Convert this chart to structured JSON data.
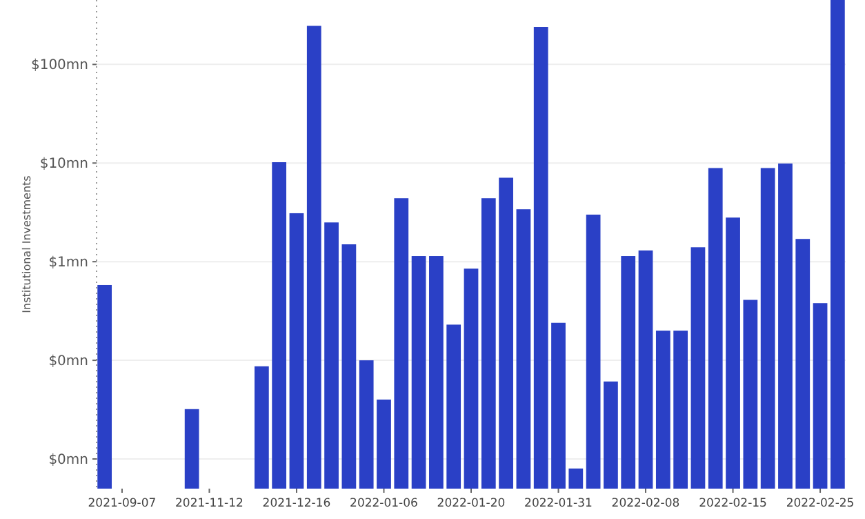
{
  "chart_data": {
    "type": "bar",
    "ylabel": "Institutional Investments",
    "categories": [
      null,
      "2021-09-07",
      null,
      null,
      null,
      null,
      "2021-11-12",
      null,
      null,
      null,
      null,
      "2021-12-16",
      null,
      null,
      null,
      null,
      "2022-01-06",
      null,
      null,
      null,
      null,
      "2022-01-20",
      null,
      null,
      null,
      null,
      "2022-01-31",
      null,
      null,
      null,
      null,
      "2022-02-08",
      null,
      null,
      null,
      null,
      "2022-02-15",
      null,
      null,
      null,
      null,
      "2022-02-25",
      null
    ],
    "values": [
      0.58,
      null,
      null,
      null,
      null,
      0.032,
      null,
      null,
      null,
      0.087,
      10.2,
      3.1,
      246,
      2.5,
      1.5,
      0.1,
      0.04,
      4.4,
      1.14,
      1.14,
      0.23,
      0.85,
      4.4,
      7.1,
      3.4,
      240,
      0.24,
      0.008,
      3.0,
      0.061,
      1.14,
      1.3,
      0.2,
      0.2,
      1.4,
      8.9,
      2.8,
      0.41,
      8.9,
      9.9,
      1.7,
      0.38,
      450
    ],
    "color": "#2a40c6",
    "log": true,
    "ylim": [
      0.005,
      450
    ],
    "yticks": [
      {
        "value": 0.01,
        "label": "$0mn"
      },
      {
        "value": 0.1,
        "label": "$0mn"
      },
      {
        "value": 1,
        "label": "$1mn"
      },
      {
        "value": 10,
        "label": "$10mn"
      },
      {
        "value": 100,
        "label": "$100mn"
      }
    ],
    "grid": "y"
  }
}
